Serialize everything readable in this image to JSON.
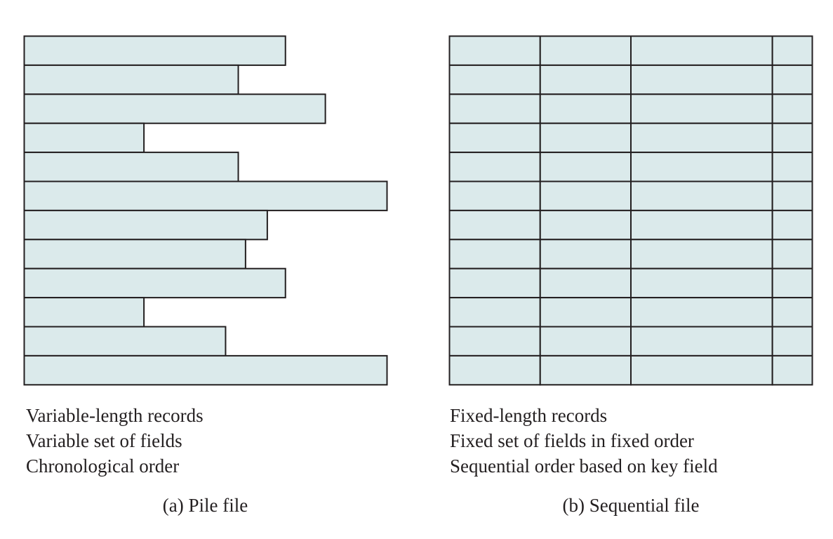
{
  "pile_file": {
    "record_lengths": [
      0.72,
      0.59,
      0.83,
      0.33,
      0.59,
      1.0,
      0.67,
      0.61,
      0.72,
      0.33,
      0.555,
      1.0
    ],
    "descriptions": [
      "Variable-length records",
      "Variable set of fields",
      "Chronological order"
    ],
    "label": "(a) Pile file"
  },
  "sequential_file": {
    "record_count": 12,
    "field_widths": [
      0.25,
      0.25,
      0.39,
      0.11
    ],
    "descriptions": [
      "Fixed-length records",
      "Fixed set of fields in fixed order",
      "Sequential order based on key field"
    ],
    "label": "(b) Sequential file"
  },
  "colors": {
    "record_fill": "#dbeaeb",
    "stroke": "#231f20"
  }
}
